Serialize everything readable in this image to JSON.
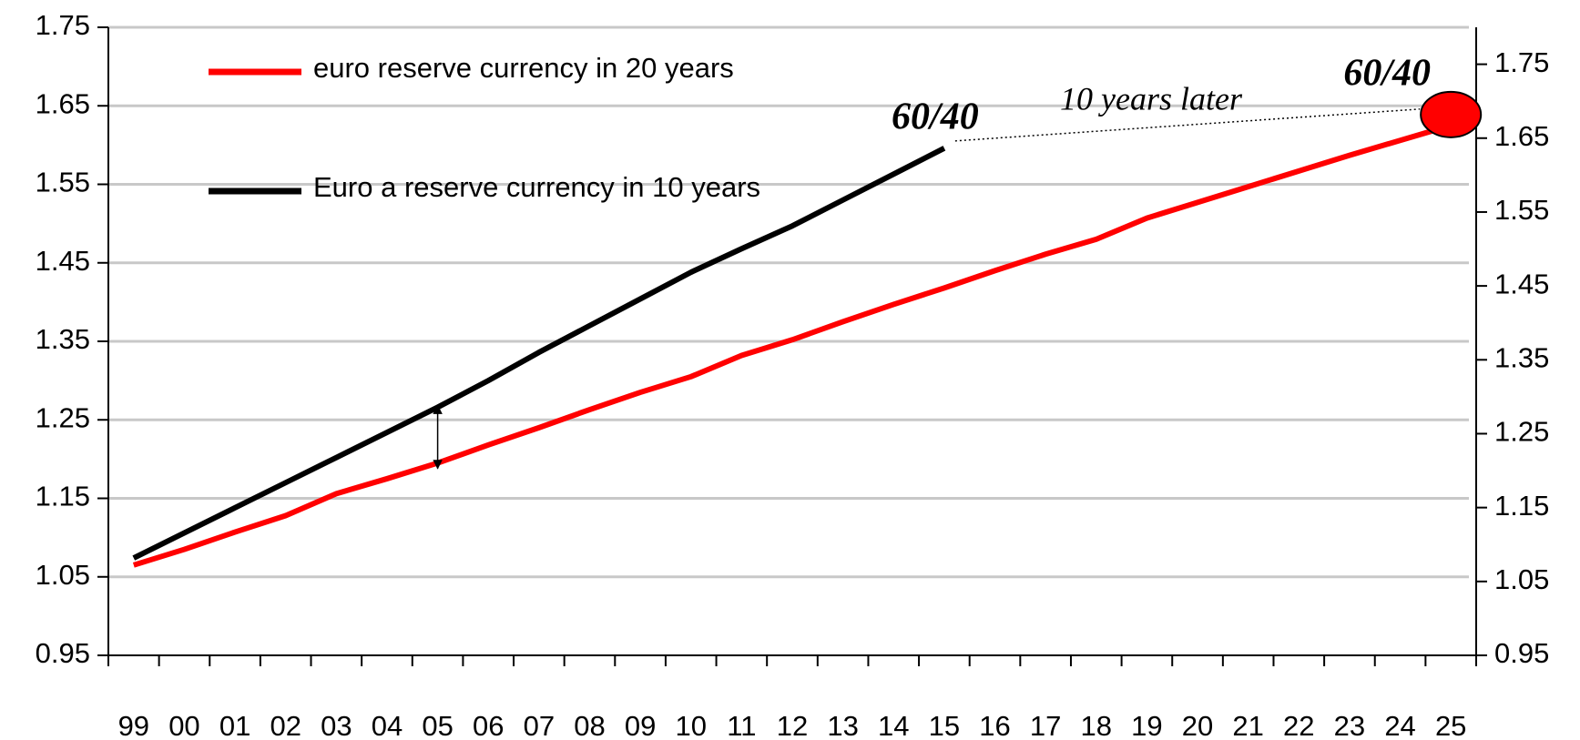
{
  "chart_data": {
    "type": "line",
    "categories": [
      "99",
      "00",
      "01",
      "02",
      "03",
      "04",
      "05",
      "06",
      "07",
      "08",
      "09",
      "10",
      "11",
      "12",
      "13",
      "14",
      "15",
      "16",
      "17",
      "18",
      "19",
      "20",
      "21",
      "22",
      "23",
      "24",
      "25"
    ],
    "series": [
      {
        "name": "euro reserve currency in 20 years",
        "color": "#ff0000",
        "values": [
          1.065,
          1.085,
          1.107,
          1.128,
          1.156,
          1.175,
          1.195,
          1.218,
          1.24,
          1.263,
          1.285,
          1.305,
          1.332,
          1.352,
          1.375,
          1.397,
          1.418,
          1.44,
          1.461,
          1.48,
          1.507,
          1.527,
          1.547,
          1.567,
          1.587,
          1.606,
          1.625
        ]
      },
      {
        "name": "Euro a reserve currency in 10 years",
        "color": "#000000",
        "values": [
          1.074,
          1.106,
          1.138,
          1.17,
          1.202,
          1.234,
          1.266,
          1.3,
          1.336,
          1.37,
          1.404,
          1.438,
          1.468,
          1.497,
          1.53,
          1.563,
          1.596,
          null,
          null,
          null,
          null,
          null,
          null,
          null,
          null,
          null,
          null
        ]
      }
    ],
    "ylim": [
      0.95,
      1.75
    ],
    "yticks": [
      0.95,
      1.05,
      1.15,
      1.25,
      1.35,
      1.45,
      1.55,
      1.65,
      1.75
    ],
    "y2lim": [
      0.95,
      1.8
    ],
    "y2ticks": [
      0.95,
      1.05,
      1.15,
      1.25,
      1.35,
      1.45,
      1.55,
      1.65,
      1.75
    ],
    "grid": true,
    "legend": "top-left",
    "annotations": [
      "60/40",
      "10 years later",
      "60/40"
    ]
  }
}
